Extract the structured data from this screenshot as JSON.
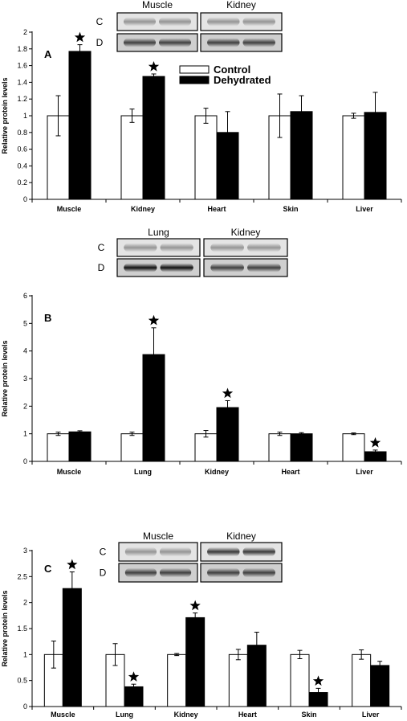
{
  "legend": {
    "control": "Control",
    "dehydrated": "Dehydrated"
  },
  "colors": {
    "control": "#ffffff",
    "dehydrated": "#000000",
    "axis": "#000000"
  },
  "chart_data": [
    {
      "type": "bar",
      "panel_label": "A",
      "ylabel": "Relative protein levels",
      "ylim": [
        0,
        2
      ],
      "yticks": [
        0,
        0.2,
        0.4,
        0.6,
        0.8,
        1,
        1.2,
        1.4,
        1.6,
        1.8,
        2
      ],
      "ytick_labels": [
        "0",
        "0.2",
        "0.4",
        "0.6",
        "0.8",
        "1",
        "1.2",
        "1.4",
        "1.6",
        "1.8",
        "2"
      ],
      "categories": [
        "Muscle",
        "Kidney",
        "Heart",
        "Skin",
        "Liver"
      ],
      "series": [
        {
          "name": "Control",
          "values": [
            1.0,
            1.0,
            1.0,
            1.0,
            1.0
          ],
          "errors": [
            0.24,
            0.08,
            0.09,
            0.26,
            0.03
          ]
        },
        {
          "name": "Dehydrated",
          "values": [
            1.77,
            1.47,
            0.8,
            1.05,
            1.04
          ],
          "errors": [
            0.08,
            0.03,
            0.25,
            0.19,
            0.24
          ]
        }
      ],
      "significant": [
        [
          false,
          false,
          false,
          false,
          false
        ],
        [
          true,
          true,
          false,
          false,
          false
        ]
      ],
      "blot": {
        "tissues": [
          "Muscle",
          "Kidney"
        ],
        "rows": [
          "C",
          "D"
        ]
      }
    },
    {
      "type": "bar",
      "panel_label": "B",
      "ylabel": "Relative protein levels",
      "ylim": [
        0,
        6
      ],
      "yticks": [
        0,
        1,
        2,
        3,
        4,
        5,
        6
      ],
      "ytick_labels": [
        "0",
        "1",
        "2",
        "3",
        "4",
        "5",
        "6"
      ],
      "categories": [
        "Muscle",
        "Lung",
        "Kidney",
        "Heart",
        "Liver"
      ],
      "series": [
        {
          "name": "Control",
          "values": [
            1.0,
            1.0,
            1.0,
            1.0,
            1.0
          ],
          "errors": [
            0.06,
            0.06,
            0.12,
            0.06,
            0.03
          ]
        },
        {
          "name": "Dehydrated",
          "values": [
            1.07,
            3.87,
            1.95,
            1.0,
            0.35
          ],
          "errors": [
            0.04,
            0.97,
            0.25,
            0.04,
            0.06
          ]
        }
      ],
      "significant": [
        [
          false,
          false,
          false,
          false,
          false
        ],
        [
          false,
          true,
          true,
          false,
          true
        ]
      ],
      "blot": {
        "tissues": [
          "Lung",
          "Kidney"
        ],
        "rows": [
          "C",
          "D"
        ]
      }
    },
    {
      "type": "bar",
      "panel_label": "C",
      "ylabel": "Relative protein levels",
      "ylim": [
        0,
        3
      ],
      "yticks": [
        0,
        0.5,
        1,
        1.5,
        2,
        2.5,
        3
      ],
      "ytick_labels": [
        "0",
        "0.5",
        "1",
        "1.5",
        "2",
        "2.5",
        "3"
      ],
      "categories": [
        "Muscle",
        "Lung",
        "Kidney",
        "Heart",
        "Skin",
        "Liver"
      ],
      "series": [
        {
          "name": "Control",
          "values": [
            1.0,
            1.0,
            1.0,
            1.0,
            1.0,
            1.0
          ],
          "errors": [
            0.26,
            0.21,
            0.02,
            0.1,
            0.08,
            0.09
          ]
        },
        {
          "name": "Dehydrated",
          "values": [
            2.27,
            0.38,
            1.71,
            1.18,
            0.27,
            0.79
          ],
          "errors": [
            0.32,
            0.05,
            0.09,
            0.25,
            0.08,
            0.08
          ]
        }
      ],
      "significant": [
        [
          false,
          false,
          false,
          false,
          false,
          false
        ],
        [
          true,
          true,
          true,
          false,
          true,
          false
        ]
      ],
      "blot": {
        "tissues": [
          "Muscle",
          "Kidney"
        ],
        "rows": [
          "C",
          "D"
        ]
      }
    }
  ]
}
